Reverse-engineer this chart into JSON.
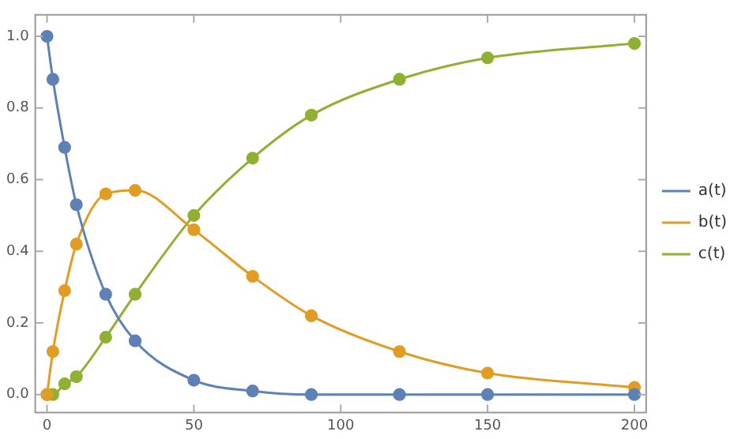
{
  "chart_data": {
    "type": "line",
    "x": [
      0,
      2,
      6,
      10,
      20,
      30,
      50,
      70,
      90,
      120,
      150,
      200
    ],
    "series": [
      {
        "name": "a(t)",
        "color": "#5e81b5",
        "values": [
          1.0,
          0.88,
          0.69,
          0.53,
          0.28,
          0.15,
          0.04,
          0.01,
          0.0,
          0.0,
          0.0,
          0.0
        ]
      },
      {
        "name": "b(t)",
        "color": "#e19c24",
        "values": [
          0.0,
          0.12,
          0.29,
          0.42,
          0.56,
          0.57,
          0.46,
          0.33,
          0.22,
          0.12,
          0.06,
          0.02
        ]
      },
      {
        "name": "c(t)",
        "color": "#8fb032",
        "values": [
          0.0,
          0.0,
          0.03,
          0.05,
          0.16,
          0.28,
          0.5,
          0.66,
          0.78,
          0.88,
          0.94,
          0.98
        ]
      }
    ],
    "xlim": [
      -4,
      204
    ],
    "xticks": [
      0,
      50,
      100,
      150,
      200
    ],
    "ylim": [
      -0.05,
      1.06
    ],
    "yticks": [
      {
        "value": 0,
        "label": "0.0"
      },
      {
        "value": 0.2,
        "label": "0.2"
      },
      {
        "value": 0.4,
        "label": "0.4"
      },
      {
        "value": 0.6,
        "label": "0.6"
      },
      {
        "value": 0.8,
        "label": "0.8"
      },
      {
        "value": 1,
        "label": "1.0"
      }
    ],
    "grid": false,
    "legend": "right",
    "marker": "circle",
    "line_style": "solid"
  }
}
